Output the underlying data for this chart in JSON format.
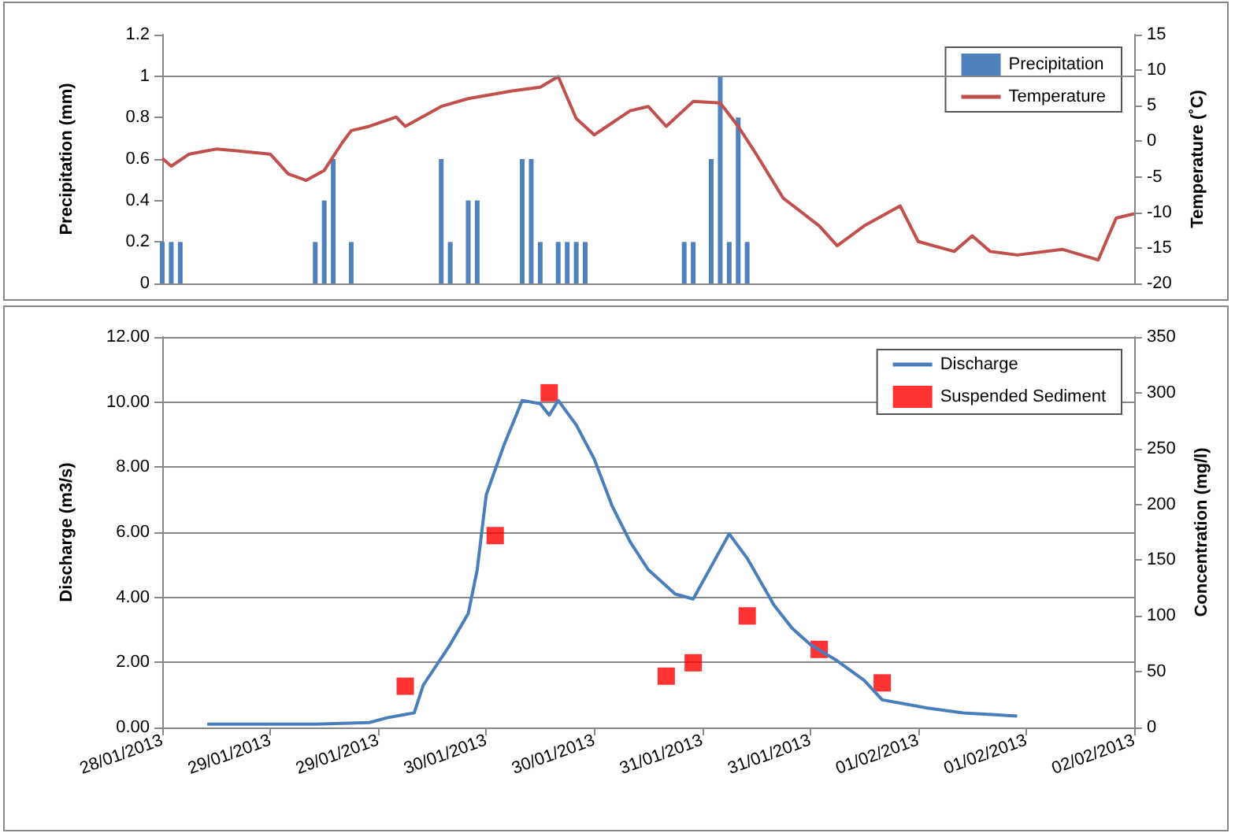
{
  "chart_data": [
    {
      "type": "bar",
      "ylabel": "Precipitation (mm)",
      "y2label": "Temperature (˚C)",
      "xlim": [
        "2013-01-28T12:00",
        "2013-02-02T00:00"
      ],
      "ylim": [
        0,
        1.2
      ],
      "yticks": [
        0,
        0.2,
        0.4,
        0.6,
        0.8,
        1,
        1.2
      ],
      "y2lim": [
        -20,
        15
      ],
      "y2ticks": [
        -20,
        -15,
        -10,
        -5,
        0,
        5,
        10,
        15
      ],
      "tick_labels": "y",
      "grid": false,
      "legend": "top right",
      "ref_lines": [
        {
          "axis": "y",
          "value": 1
        }
      ],
      "series": [
        {
          "name": "Precipitation",
          "color": "#4f81bd",
          "x": [
            "2013-01-28T12:00",
            "2013-01-28T13:00",
            "2013-01-28T14:00",
            "2013-01-29T05:00",
            "2013-01-29T06:00",
            "2013-01-29T07:00",
            "2013-01-29T09:00",
            "2013-01-29T19:00",
            "2013-01-29T20:00",
            "2013-01-29T22:00",
            "2013-01-29T23:00",
            "2013-01-30T04:00",
            "2013-01-30T05:00",
            "2013-01-30T06:00",
            "2013-01-30T08:00",
            "2013-01-30T09:00",
            "2013-01-30T10:00",
            "2013-01-30T11:00",
            "2013-01-30T22:00",
            "2013-01-30T23:00",
            "2013-01-31T01:00",
            "2013-01-31T02:00",
            "2013-01-31T03:00",
            "2013-01-31T04:00",
            "2013-01-31T05:00"
          ],
          "values": [
            0.2,
            0.2,
            0.2,
            0.2,
            0.4,
            0.6,
            0.2,
            0.6,
            0.2,
            0.4,
            0.4,
            0.6,
            0.6,
            0.2,
            0.2,
            0.2,
            0.2,
            0.2,
            0.2,
            0.2,
            0.6,
            1.0,
            0.2,
            0.8,
            0.2
          ]
        },
        {
          "name": "Temperature",
          "type": "line",
          "axis": "y2",
          "color": "#c0504d",
          "x": [
            "2013-01-28T12:00",
            "2013-01-28T13:00",
            "2013-01-28T15:00",
            "2013-01-28T18:00",
            "2013-01-28T20:00",
            "2013-01-29T00:00",
            "2013-01-29T02:00",
            "2013-01-29T04:00",
            "2013-01-29T06:00",
            "2013-01-29T08:00",
            "2013-01-29T09:00",
            "2013-01-29T11:00",
            "2013-01-29T14:00",
            "2013-01-29T15:00",
            "2013-01-29T19:00",
            "2013-01-29T22:00",
            "2013-01-30T03:00",
            "2013-01-30T06:00",
            "2013-01-30T08:00",
            "2013-01-30T10:00",
            "2013-01-30T12:00",
            "2013-01-30T16:00",
            "2013-01-30T18:00",
            "2013-01-30T20:00",
            "2013-01-30T23:00",
            "2013-01-31T02:00",
            "2013-01-31T04:00",
            "2013-01-31T06:00",
            "2013-01-31T09:00",
            "2013-01-31T13:00",
            "2013-01-31T15:00",
            "2013-01-31T18:00",
            "2013-01-31T22:00",
            "2013-02-01T00:00",
            "2013-02-01T04:00",
            "2013-02-01T06:00",
            "2013-02-01T08:00",
            "2013-02-01T11:00",
            "2013-02-01T16:00",
            "2013-02-01T20:00",
            "2013-02-01T22:00",
            "2013-02-02T00:00"
          ],
          "values": [
            -2.4,
            -3.5,
            -1.8,
            -1.1,
            -1.3,
            -1.8,
            -4.6,
            -5.5,
            -4.1,
            -0.2,
            1.5,
            2.1,
            3.4,
            2.1,
            4.9,
            6.0,
            7.1,
            7.6,
            9.1,
            3.2,
            0.9,
            4.3,
            4.9,
            2.1,
            5.6,
            5.4,
            2.1,
            -1.8,
            -8.0,
            -11.9,
            -14.7,
            -11.9,
            -9.1,
            -14.1,
            -15.5,
            -13.3,
            -15.5,
            -16.0,
            -15.2,
            -16.7,
            -10.8,
            -10.2
          ]
        }
      ]
    },
    {
      "type": "line",
      "ylabel": "Discharge (m3/s)",
      "y2label": "Concentration (mg/l)",
      "xlim": [
        "2013-01-28T12:00",
        "2013-02-02T00:00"
      ],
      "xticks": [
        {
          "value": "2013-01-28T12:00",
          "label": "28/01/2013"
        },
        {
          "value": "2013-01-29T00:00",
          "label": "29/01/2013"
        },
        {
          "value": "2013-01-29T12:00",
          "label": "29/01/2013"
        },
        {
          "value": "2013-01-30T00:00",
          "label": "30/01/2013"
        },
        {
          "value": "2013-01-30T12:00",
          "label": "30/01/2013"
        },
        {
          "value": "2013-01-31T00:00",
          "label": "31/01/2013"
        },
        {
          "value": "2013-01-31T12:00",
          "label": "31/01/2013"
        },
        {
          "value": "2013-02-01T00:00",
          "label": "01/02/2013"
        },
        {
          "value": "2013-02-01T12:00",
          "label": "01/02/2013"
        },
        {
          "value": "2013-02-02T00:00",
          "label": "02/02/2013"
        }
      ],
      "ylim": [
        0,
        12
      ],
      "yticks": [
        {
          "value": 0,
          "label": "0.00"
        },
        {
          "value": 2,
          "label": "2.00"
        },
        {
          "value": 4,
          "label": "4.00"
        },
        {
          "value": 6,
          "label": "6.00"
        },
        {
          "value": 8,
          "label": "8.00"
        },
        {
          "value": 10,
          "label": "10.00"
        },
        {
          "value": 12,
          "label": "12.00"
        }
      ],
      "y2lim": [
        0,
        350
      ],
      "y2ticks": [
        0,
        50,
        100,
        150,
        200,
        250,
        300,
        350
      ],
      "grid": "y",
      "legend": "top right",
      "series": [
        {
          "name": "Discharge",
          "color": "#4a7ebb",
          "x": [
            "2013-01-28T17:00",
            "2013-01-29T05:00",
            "2013-01-29T11:00",
            "2013-01-29T13:00",
            "2013-01-29T16:00",
            "2013-01-29T17:00",
            "2013-01-29T20:00",
            "2013-01-29T22:00",
            "2013-01-29T23:00",
            "2013-01-30T00:00",
            "2013-01-30T02:00",
            "2013-01-30T04:00",
            "2013-01-30T06:00",
            "2013-01-30T07:00",
            "2013-01-30T08:00",
            "2013-01-30T10:00",
            "2013-01-30T12:00",
            "2013-01-30T14:00",
            "2013-01-30T16:00",
            "2013-01-30T18:00",
            "2013-01-30T21:00",
            "2013-01-30T23:00",
            "2013-01-31T01:00",
            "2013-01-31T03:00",
            "2013-01-31T05:00",
            "2013-01-31T08:00",
            "2013-01-31T10:00",
            "2013-01-31T12:00",
            "2013-01-31T15:00",
            "2013-01-31T18:00",
            "2013-01-31T20:00",
            "2013-01-31T22:00",
            "2013-02-01T01:00",
            "2013-02-01T05:00",
            "2013-02-01T11:00"
          ],
          "values": [
            0.1,
            0.1,
            0.15,
            0.3,
            0.45,
            1.3,
            2.55,
            3.5,
            4.85,
            7.15,
            8.7,
            10.05,
            9.95,
            9.6,
            10.05,
            9.3,
            8.25,
            6.8,
            5.7,
            4.85,
            4.1,
            3.95,
            4.95,
            5.95,
            5.2,
            3.75,
            3.05,
            2.55,
            2.05,
            1.45,
            0.85,
            0.75,
            0.6,
            0.45,
            0.35
          ]
        },
        {
          "name": "Suspended Sediment",
          "type": "scatter",
          "axis": "y2",
          "marker": "square",
          "color": "#ff0000",
          "x": [
            "2013-01-29T15:00",
            "2013-01-30T01:00",
            "2013-01-30T07:00",
            "2013-01-30T20:00",
            "2013-01-30T23:00",
            "2013-01-31T05:00",
            "2013-01-31T13:00",
            "2013-01-31T20:00"
          ],
          "values": [
            37,
            172,
            300,
            46,
            58,
            100,
            70,
            40
          ]
        }
      ]
    }
  ]
}
